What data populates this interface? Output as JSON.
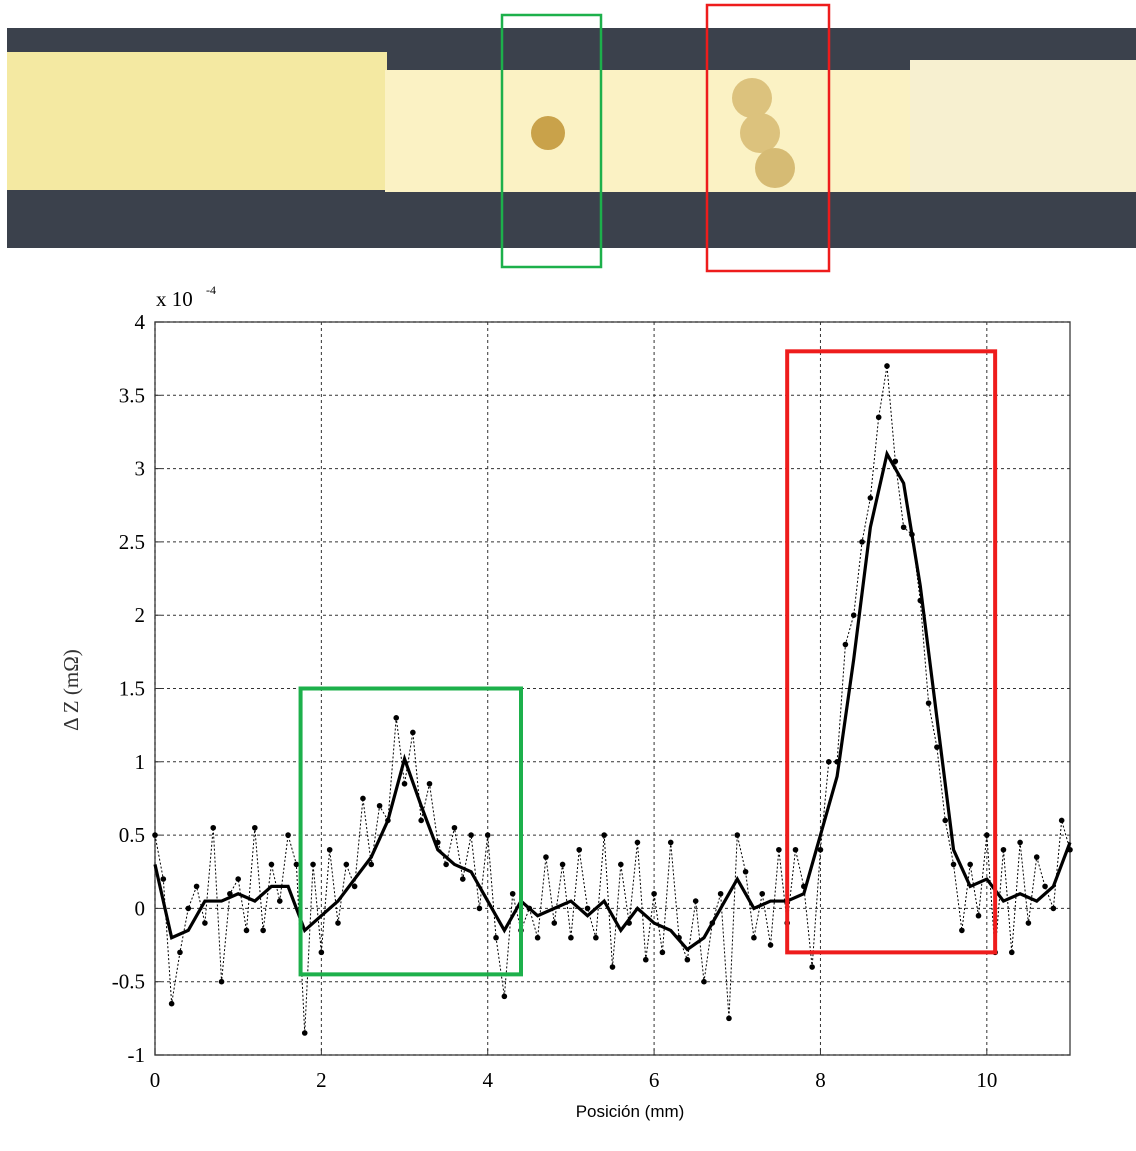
{
  "chart_data": {
    "type": "line",
    "xlabel": "Posición (mm)",
    "ylabel": "Δ Z (mΩ)",
    "y_multiplier": {
      "base": "x 10",
      "exponent": "-4"
    },
    "xlim": [
      0,
      11
    ],
    "xticks": [
      0,
      2,
      4,
      6,
      8,
      10
    ],
    "ylim": [
      -1,
      4
    ],
    "yticks": [
      -1,
      -0.5,
      0,
      0.5,
      1,
      1.5,
      2,
      2.5,
      3,
      3.5,
      4
    ],
    "grid": true,
    "series": [
      {
        "color": "#000000",
        "line_style": "dotted",
        "markers": true,
        "x": [
          0,
          0.1,
          0.2,
          0.3,
          0.4,
          0.5,
          0.6,
          0.7,
          0.8,
          0.9,
          1,
          1.1,
          1.2,
          1.3,
          1.4,
          1.5,
          1.6,
          1.7,
          1.8,
          1.9,
          2,
          2.1,
          2.2,
          2.3,
          2.4,
          2.5,
          2.6,
          2.7,
          2.8,
          2.9,
          3,
          3.1,
          3.2,
          3.3,
          3.4,
          3.5,
          3.6,
          3.7,
          3.8,
          3.9,
          4,
          4.1,
          4.2,
          4.3,
          4.4,
          4.5,
          4.6,
          4.7,
          4.8,
          4.9,
          5,
          5.1,
          5.2,
          5.3,
          5.4,
          5.5,
          5.6,
          5.7,
          5.8,
          5.9,
          6,
          6.1,
          6.2,
          6.3,
          6.4,
          6.5,
          6.6,
          6.7,
          6.8,
          6.9,
          7,
          7.1,
          7.2,
          7.3,
          7.4,
          7.5,
          7.6,
          7.7,
          7.8,
          7.9,
          8,
          8.1,
          8.2,
          8.3,
          8.4,
          8.5,
          8.6,
          8.7,
          8.8,
          8.9,
          9,
          9.1,
          9.2,
          9.3,
          9.4,
          9.5,
          9.6,
          9.7,
          9.8,
          9.9,
          10,
          10.1,
          10.2,
          10.3,
          10.4,
          10.5,
          10.6,
          10.7,
          10.8,
          10.9,
          11
        ],
        "values": [
          0.5,
          0.2,
          -0.65,
          -0.3,
          0,
          0.15,
          -0.1,
          0.55,
          -0.5,
          0.1,
          0.2,
          -0.15,
          0.55,
          -0.15,
          0.3,
          0.05,
          0.5,
          0.3,
          -0.85,
          0.3,
          -0.3,
          0.4,
          -0.1,
          0.3,
          0.15,
          0.75,
          0.3,
          0.7,
          0.6,
          1.3,
          0.85,
          1.2,
          0.6,
          0.85,
          0.45,
          0.3,
          0.55,
          0.2,
          0.5,
          0,
          0.5,
          -0.2,
          -0.6,
          0.1,
          -0.15,
          0,
          -0.2,
          0.35,
          -0.1,
          0.3,
          -0.2,
          0.4,
          0,
          -0.2,
          0.5,
          -0.4,
          0.3,
          -0.1,
          0.45,
          -0.35,
          0.1,
          -0.3,
          0.45,
          -0.2,
          -0.35,
          0.05,
          -0.5,
          -0.1,
          0.1,
          -0.75,
          0.5,
          0.25,
          -0.2,
          0.1,
          -0.25,
          0.4,
          -0.1,
          0.4,
          0.15,
          -0.4,
          0.4,
          1,
          1,
          1.8,
          2,
          2.5,
          2.8,
          3.35,
          3.7,
          3.05,
          2.6,
          2.55,
          2.1,
          1.4,
          1.1,
          0.6,
          0.3,
          -0.15,
          0.3,
          -0.05,
          0.5,
          -0.3,
          0.4,
          -0.3,
          0.45,
          -0.1,
          0.35,
          0.15,
          0,
          0.6,
          0.4
        ]
      },
      {
        "color": "#000000",
        "line_style": "solid",
        "markers": false,
        "x": [
          0,
          0.2,
          0.4,
          0.6,
          0.8,
          1,
          1.2,
          1.4,
          1.6,
          1.8,
          2,
          2.2,
          2.4,
          2.6,
          2.8,
          3,
          3.2,
          3.4,
          3.6,
          3.8,
          4,
          4.2,
          4.4,
          4.6,
          4.8,
          5,
          5.2,
          5.4,
          5.6,
          5.8,
          6,
          6.2,
          6.4,
          6.6,
          6.8,
          7,
          7.2,
          7.4,
          7.6,
          7.8,
          8,
          8.2,
          8.4,
          8.6,
          8.8,
          9,
          9.2,
          9.4,
          9.6,
          9.8,
          10,
          10.2,
          10.4,
          10.6,
          10.8,
          11
        ],
        "values": [
          0.3,
          -0.2,
          -0.15,
          0.05,
          0.05,
          0.1,
          0.05,
          0.15,
          0.15,
          -0.15,
          -0.05,
          0.05,
          0.2,
          0.35,
          0.6,
          1.02,
          0.7,
          0.4,
          0.3,
          0.25,
          0.05,
          -0.15,
          0.05,
          -0.05,
          0,
          0.05,
          -0.05,
          0.05,
          -0.15,
          0,
          -0.1,
          -0.15,
          -0.28,
          -0.2,
          0,
          0.2,
          0,
          0.05,
          0.05,
          0.1,
          0.5,
          0.9,
          1.7,
          2.6,
          3.1,
          2.9,
          2.2,
          1.3,
          0.4,
          0.15,
          0.2,
          0.05,
          0.1,
          0.05,
          0.15,
          0.45
        ]
      }
    ],
    "regions": [
      {
        "color": "#1db04b",
        "xlim": [
          1.75,
          4.4
        ],
        "ylim": [
          -0.45,
          1.5
        ]
      },
      {
        "color": "#ee1c1c",
        "xlim": [
          7.6,
          10.1
        ],
        "ylim": [
          -0.3,
          3.8
        ]
      }
    ]
  }
}
